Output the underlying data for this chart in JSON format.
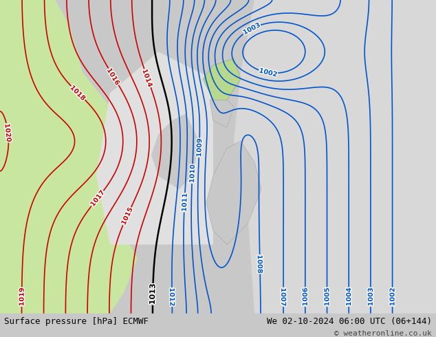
{
  "title_left": "Surface pressure [hPa] ECMWF",
  "title_right": "We 02-10-2024 06:00 UTC (06+144)",
  "copyright": "© weatheronline.co.uk",
  "figsize": [
    6.34,
    4.9
  ],
  "dpi": 100,
  "bg_color": "#d0d0d0",
  "land_color_green": "#c8e6a0",
  "land_color_gray": "#c8c8c8",
  "sea_color": "#e8e8e8",
  "bottom_bar_color": "#e0e0e0",
  "contour_colors": {
    "black": "#000000",
    "red": "#cc0000",
    "blue": "#0000cc",
    "green": "#00aa00"
  },
  "pressure_min": 1002,
  "pressure_max": 1020,
  "pressure_step": 1,
  "lon_min": 118,
  "lon_max": 148,
  "lat_min": 24,
  "lat_max": 48
}
